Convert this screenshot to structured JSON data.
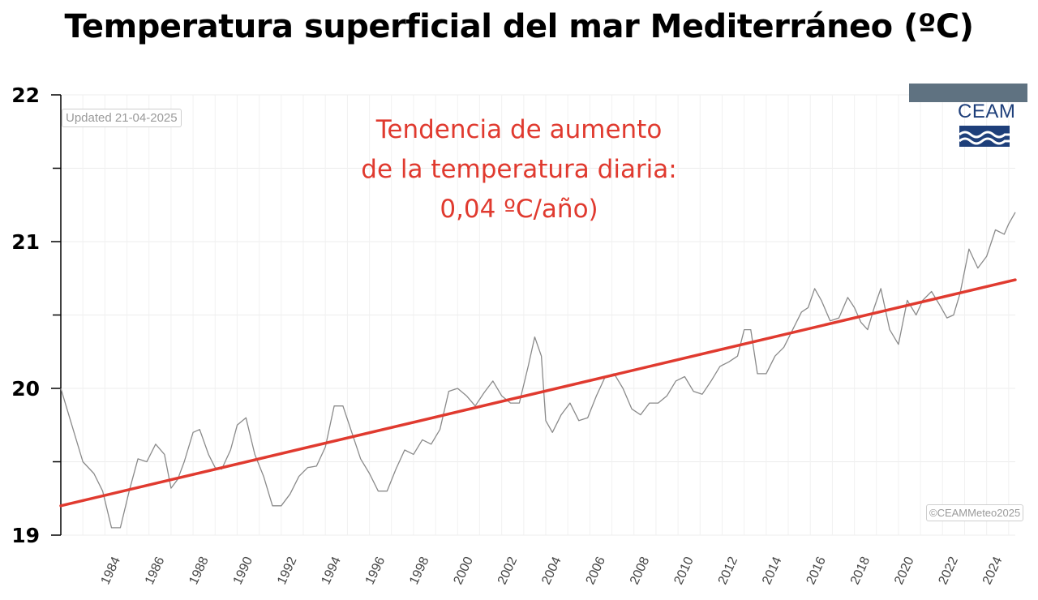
{
  "chart_data": {
    "type": "line",
    "title": "Temperatura superficial del mar Mediterráneo (ºC)",
    "y_ticks": [
      "22",
      "21",
      "20",
      "19"
    ],
    "ylim": [
      19,
      22
    ],
    "x_range_years": [
      1982.0,
      2025.3
    ],
    "x_ticks": [
      "1984",
      "1986",
      "1988",
      "1990",
      "1992",
      "1994",
      "1996",
      "1998",
      "2000",
      "2002",
      "2004",
      "2006",
      "2008",
      "2010",
      "2012",
      "2014",
      "2016",
      "2018",
      "2020",
      "2022",
      "2024"
    ],
    "annotation": [
      "Tendencia de aumento",
      "de la temperatura diaria:",
      "0,04 ºC/año)"
    ],
    "updated_label": "Updated 21-04-2025",
    "credit_label": "©CEAMMeteo2025",
    "logo_text": "CEAM",
    "grid": true,
    "series": [
      {
        "style": "thin-gray",
        "color": "#8a8a8a",
        "x": [
          1982.0,
          1982.5,
          1983.0,
          1983.5,
          1983.9,
          1984.3,
          1984.7,
          1985.1,
          1985.5,
          1985.9,
          1986.3,
          1986.7,
          1987.0,
          1987.3,
          1987.6,
          1988.0,
          1988.3,
          1988.7,
          1989.0,
          1989.3,
          1989.7,
          1990.0,
          1990.4,
          1990.8,
          1991.2,
          1991.6,
          1992.0,
          1992.4,
          1992.8,
          1993.2,
          1993.6,
          1994.0,
          1994.4,
          1994.8,
          1995.2,
          1995.6,
          1996.0,
          1996.4,
          1996.8,
          1997.2,
          1997.6,
          1998.0,
          1998.4,
          1998.8,
          1999.2,
          1999.6,
          2000.0,
          2000.4,
          2000.8,
          2001.2,
          2001.6,
          2002.0,
          2002.4,
          2002.8,
          2003.2,
          2003.5,
          2003.8,
          2004.0,
          2004.3,
          2004.7,
          2005.1,
          2005.5,
          2005.9,
          2006.3,
          2006.7,
          2007.1,
          2007.5,
          2007.9,
          2008.3,
          2008.7,
          2009.1,
          2009.5,
          2009.9,
          2010.3,
          2010.7,
          2011.1,
          2011.5,
          2011.9,
          2012.3,
          2012.7,
          2013.0,
          2013.3,
          2013.6,
          2014.0,
          2014.4,
          2014.8,
          2015.2,
          2015.6,
          2015.9,
          2016.2,
          2016.5,
          2016.9,
          2017.3,
          2017.7,
          2018.0,
          2018.3,
          2018.6,
          2018.9,
          2019.2,
          2019.6,
          2020.0,
          2020.4,
          2020.8,
          2021.1,
          2021.5,
          2021.9,
          2022.2,
          2022.5,
          2022.8,
          2023.2,
          2023.6,
          2024.0,
          2024.4,
          2024.8,
          2025.0,
          2025.3
        ],
        "y": [
          20.0,
          19.75,
          19.5,
          19.42,
          19.3,
          19.05,
          19.05,
          19.3,
          19.52,
          19.5,
          19.62,
          19.55,
          19.32,
          19.38,
          19.5,
          19.7,
          19.72,
          19.55,
          19.46,
          19.45,
          19.58,
          19.75,
          19.8,
          19.55,
          19.4,
          19.2,
          19.2,
          19.28,
          19.4,
          19.46,
          19.47,
          19.6,
          19.88,
          19.88,
          19.7,
          19.52,
          19.42,
          19.3,
          19.3,
          19.45,
          19.58,
          19.55,
          19.65,
          19.62,
          19.72,
          19.98,
          20.0,
          19.95,
          19.88,
          19.97,
          20.05,
          19.95,
          19.9,
          19.9,
          20.15,
          20.35,
          20.22,
          19.78,
          19.7,
          19.82,
          19.9,
          19.78,
          19.8,
          19.95,
          20.08,
          20.1,
          20.0,
          19.86,
          19.82,
          19.9,
          19.9,
          19.95,
          20.05,
          20.08,
          19.98,
          19.96,
          20.05,
          20.15,
          20.18,
          20.22,
          20.4,
          20.4,
          20.1,
          20.1,
          20.22,
          20.28,
          20.4,
          20.52,
          20.55,
          20.68,
          20.6,
          20.46,
          20.48,
          20.62,
          20.55,
          20.45,
          20.4,
          20.55,
          20.68,
          20.4,
          20.3,
          20.6,
          20.5,
          20.6,
          20.66,
          20.56,
          20.48,
          20.5,
          20.65,
          20.95,
          20.82,
          20.9,
          21.08,
          21.05,
          21.12,
          21.2
        ]
      },
      {
        "style": "trend",
        "color": "#e03a2f",
        "x": [
          1982.0,
          2025.3
        ],
        "y": [
          19.2,
          20.74
        ]
      }
    ]
  }
}
